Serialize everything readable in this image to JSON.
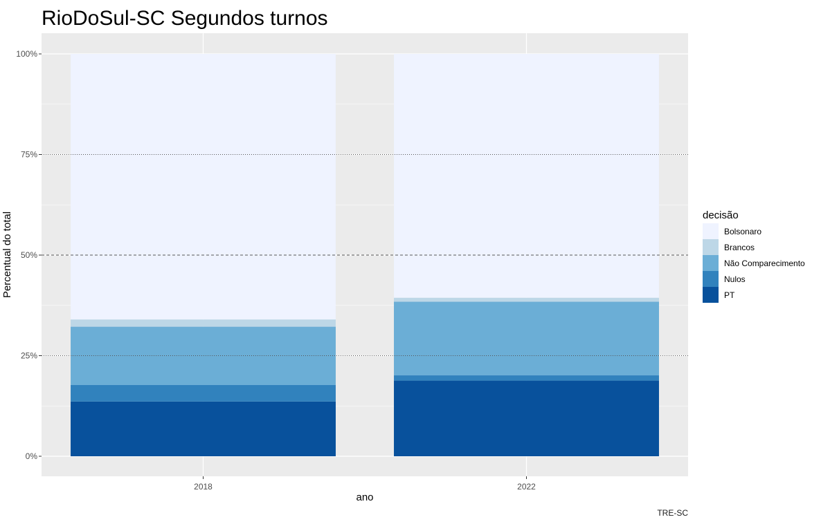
{
  "chart_data": {
    "type": "bar",
    "stacked": true,
    "title": "RioDoSul-SC Segundos turnos",
    "xlabel": "ano",
    "ylabel": "Percentual do total",
    "caption": "TRE-SC",
    "categories": [
      "2018",
      "2022"
    ],
    "ylim": [
      0,
      100
    ],
    "yticks": [
      0,
      25,
      50,
      75,
      100
    ],
    "ytick_labels": [
      "0%",
      "25%",
      "50%",
      "75%",
      "100%"
    ],
    "grid": true,
    "reference_lines": [
      {
        "value": 25,
        "style": "dotted"
      },
      {
        "value": 50,
        "style": "dashed"
      },
      {
        "value": 75,
        "style": "dotted"
      }
    ],
    "legend_title": "decisão",
    "legend_position": "right",
    "series": [
      {
        "name": "PT",
        "color": "#08519c",
        "values": [
          13.6,
          18.8
        ]
      },
      {
        "name": "Nulos",
        "color": "#3182bd",
        "values": [
          4.1,
          1.3
        ]
      },
      {
        "name": "Não Comparecimento",
        "color": "#6baed6",
        "values": [
          14.5,
          18.3
        ]
      },
      {
        "name": "Brancos",
        "color": "#bdd7e7",
        "values": [
          1.8,
          1.0
        ]
      },
      {
        "name": "Bolsonaro",
        "color": "#eff3ff",
        "values": [
          66.0,
          60.6
        ]
      }
    ],
    "legend_order": [
      "Bolsonaro",
      "Brancos",
      "Não Comparecimento",
      "Nulos",
      "PT"
    ]
  }
}
